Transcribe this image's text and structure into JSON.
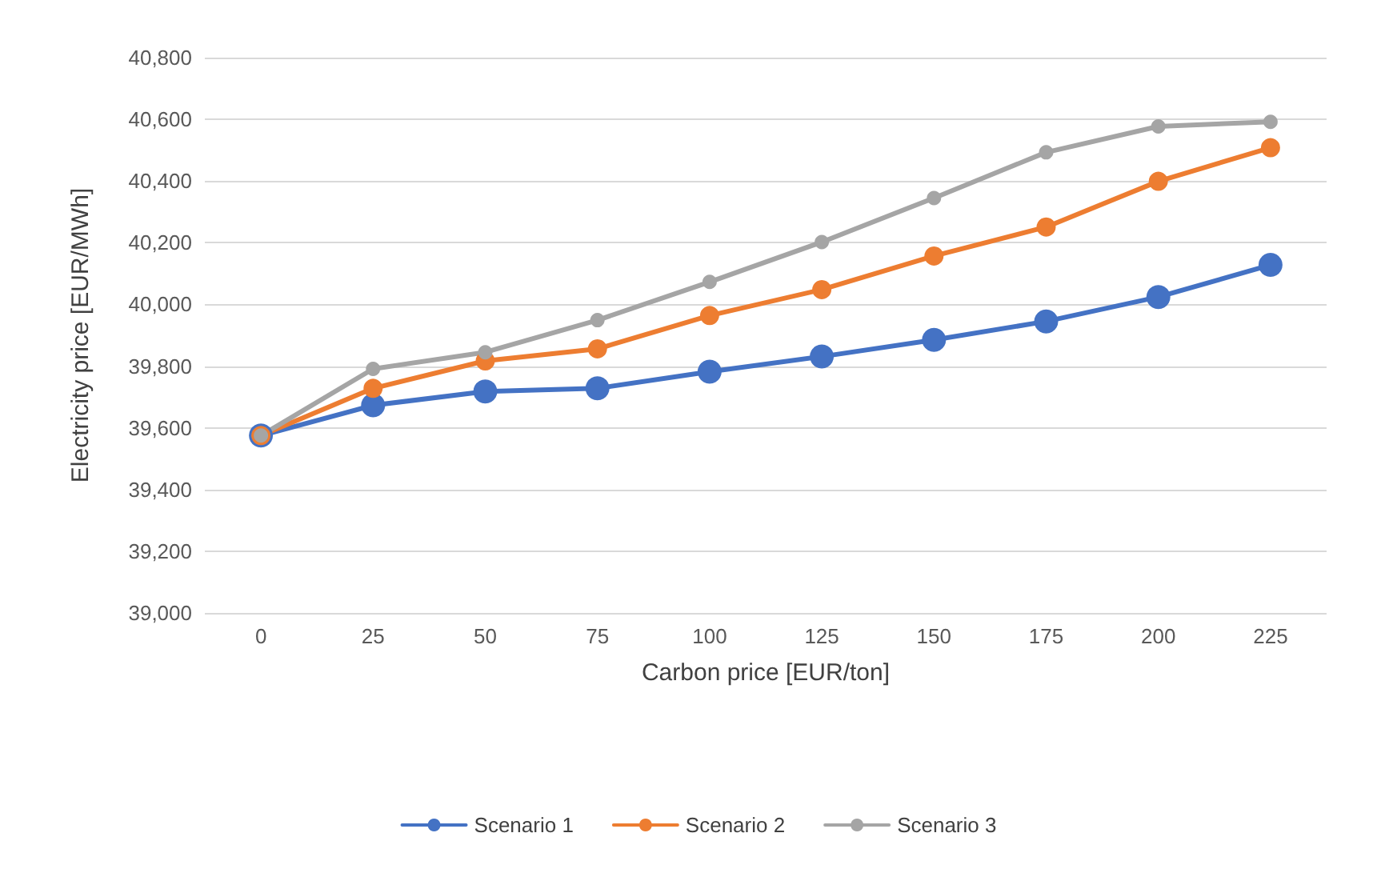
{
  "chart_data": {
    "type": "line",
    "xlabel": "Carbon price [EUR/ton]",
    "ylabel": "Electricity price [EUR/MWh]",
    "categories": [
      "0",
      "25",
      "50",
      "75",
      "100",
      "125",
      "150",
      "175",
      "200",
      "225"
    ],
    "series": [
      {
        "name": "Scenario 1",
        "color": "#4472c4",
        "values": [
          39575,
          39673,
          39718,
          39728,
          39782,
          39831,
          39885,
          39945,
          40024,
          40128
        ]
      },
      {
        "name": "Scenario 2",
        "color": "#ed7d31",
        "values": [
          39575,
          39728,
          39817,
          39856,
          39964,
          40048,
          40157,
          40251,
          40399,
          40508
        ]
      },
      {
        "name": "Scenario 3",
        "color": "#a5a5a5",
        "values": [
          39575,
          39791,
          39845,
          39949,
          40073,
          40202,
          40345,
          40493,
          40577,
          40592
        ]
      }
    ],
    "ylim": [
      39000,
      40800
    ],
    "yticks": [
      {
        "value": 39000,
        "label": "39,000"
      },
      {
        "value": 39200,
        "label": "39,200"
      },
      {
        "value": 39400,
        "label": "39,400"
      },
      {
        "value": 39600,
        "label": "39,600"
      },
      {
        "value": 39800,
        "label": "39,800"
      },
      {
        "value": 40000,
        "label": "40,000"
      },
      {
        "value": 40200,
        "label": "40,200"
      },
      {
        "value": 40400,
        "label": "40,400"
      },
      {
        "value": 40600,
        "label": "40,600"
      },
      {
        "value": 40800,
        "label": "40,800"
      }
    ],
    "grid": "y",
    "legend": "bottom",
    "marker": "circle",
    "line_style": "solid"
  }
}
